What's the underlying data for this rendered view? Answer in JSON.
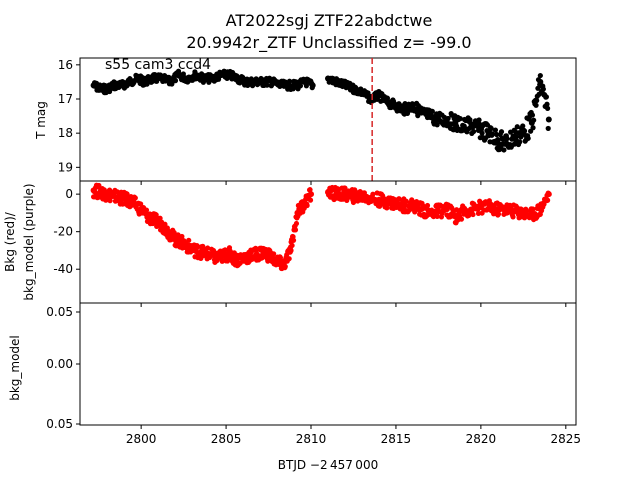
{
  "chart_data": {
    "type": "scatter",
    "title_line1": "AT2022sgj  ZTF22abdctwe",
    "title_line2": "20.9942r_ZTF Unclassified z= -99.0",
    "xlabel": "BTJD −2 457 000",
    "x_ticks": [
      2800,
      2805,
      2810,
      2815,
      2820,
      2825
    ],
    "xlim": [
      2796.4,
      2825.6
    ],
    "panels": [
      {
        "id": "tmag",
        "ylabel": "T mag",
        "ylim": [
          19.4,
          15.8
        ],
        "inverted": true,
        "y_ticks": [
          16,
          17,
          18,
          19
        ],
        "annotation": "s55 cam3 ccd4",
        "series": [
          {
            "color": "#000000",
            "points_x": [
              2797.2,
              2797.6,
              2798.0,
              2798.4,
              2798.9,
              2799.3,
              2799.8,
              2800.2,
              2800.7,
              2801.2,
              2801.7,
              2802.2,
              2802.7,
              2803.2,
              2803.7,
              2804.2,
              2804.7,
              2805.2,
              2805.7,
              2806.2,
              2806.7,
              2807.2,
              2807.7,
              2808.2,
              2808.7,
              2809.2,
              2809.7,
              2810.1,
              2811.0,
              2811.5,
              2812.0,
              2812.5,
              2813.0,
              2813.5,
              2814.0,
              2814.5,
              2815.0,
              2815.5,
              2816.0,
              2816.5,
              2817.0,
              2817.5,
              2818.0,
              2818.5,
              2819.0,
              2819.5,
              2820.0,
              2820.5,
              2821.0,
              2821.5,
              2822.0,
              2822.5,
              2823.0,
              2823.5,
              2824.0
            ],
            "points_y": [
              16.6,
              16.7,
              16.7,
              16.6,
              16.6,
              16.5,
              16.4,
              16.5,
              16.4,
              16.4,
              16.5,
              16.3,
              16.4,
              16.3,
              16.4,
              16.4,
              16.3,
              16.3,
              16.4,
              16.5,
              16.5,
              16.5,
              16.5,
              16.6,
              16.6,
              16.6,
              16.5,
              16.6,
              16.4,
              16.5,
              16.6,
              16.7,
              16.8,
              17.0,
              16.9,
              17.1,
              17.2,
              17.3,
              17.2,
              17.4,
              17.5,
              17.6,
              17.6,
              17.7,
              17.8,
              17.8,
              17.9,
              18.0,
              18.2,
              18.3,
              18.1,
              18.0,
              17.7,
              16.5,
              17.6
            ]
          }
        ],
        "vline_x": 2813.6,
        "vline_color": "#d62728"
      },
      {
        "id": "bkg",
        "ylabel_line1": "Bkg (red)/",
        "ylabel_line2": "bkg_model (purple)",
        "ylim": [
          -58,
          7
        ],
        "y_ticks": [
          0,
          -20,
          -40
        ],
        "series": [
          {
            "color": "#ff0000",
            "points_x": [
              2797.2,
              2797.6,
              2798.0,
              2798.4,
              2798.8,
              2799.2,
              2799.6,
              2800.0,
              2800.4,
              2800.8,
              2801.2,
              2801.6,
              2802.0,
              2802.4,
              2802.8,
              2803.2,
              2803.6,
              2804.0,
              2804.4,
              2804.8,
              2805.2,
              2805.6,
              2806.0,
              2806.4,
              2806.8,
              2807.2,
              2807.6,
              2808.0,
              2808.4,
              2808.8,
              2809.2,
              2809.6,
              2810.0,
              2811.0,
              2811.5,
              2812.0,
              2812.5,
              2813.0,
              2813.5,
              2814.0,
              2814.5,
              2815.0,
              2815.5,
              2816.0,
              2816.5,
              2817.0,
              2817.5,
              2818.0,
              2818.5,
              2819.0,
              2819.5,
              2820.0,
              2820.5,
              2821.0,
              2821.5,
              2822.0,
              2822.5,
              2823.0,
              2823.5,
              2824.0
            ],
            "points_y": [
              2,
              1,
              0,
              -1,
              -2,
              -3,
              -5,
              -8,
              -12,
              -14,
              -16,
              -20,
              -24,
              -26,
              -28,
              -30,
              -31,
              -32,
              -34,
              -33,
              -32,
              -35,
              -34,
              -33,
              -32,
              -31,
              -33,
              -36,
              -38,
              -30,
              -10,
              -5,
              0,
              1,
              0,
              0,
              -1,
              -1,
              -2,
              -3,
              -4,
              -5,
              -6,
              -6,
              -8,
              -10,
              -9,
              -8,
              -12,
              -9,
              -8,
              -7,
              -7,
              -8,
              -8,
              -9,
              -10,
              -11,
              -8,
              0
            ]
          }
        ]
      },
      {
        "id": "bkg_model",
        "ylabel_line1": "bkg_model",
        "ylim": [
          0.055,
          -0.055
        ],
        "y_ticks": [
          0.05,
          0.0,
          0.05
        ],
        "y_tick_labels": [
          "0.05",
          "0.00",
          "0.05"
        ],
        "series": []
      }
    ]
  }
}
